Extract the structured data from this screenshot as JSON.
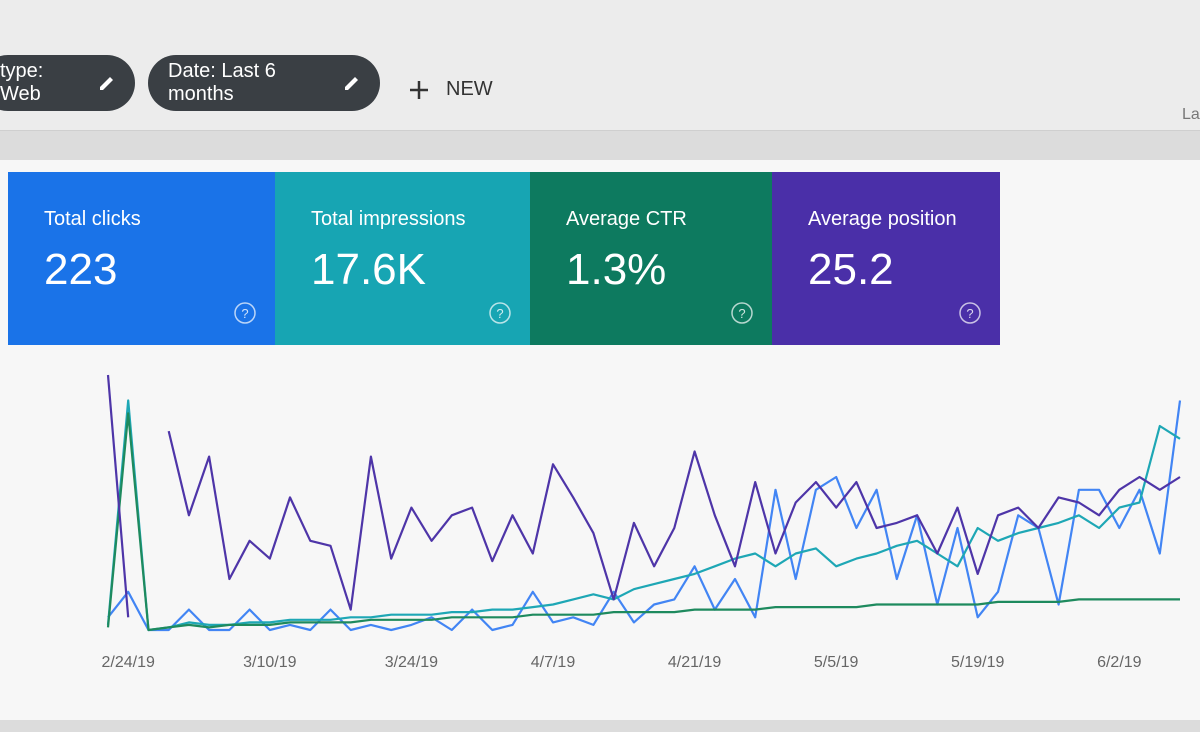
{
  "filters": [
    "type: Web",
    "Date: Last 6 months"
  ],
  "new_button": "NEW",
  "corner_text": "La",
  "metrics": [
    {
      "label": "Total clicks",
      "value": "223",
      "color": "#1a73e8"
    },
    {
      "label": "Total impressions",
      "value": "17.6K",
      "color": "#17a5b3"
    },
    {
      "label": "Average CTR",
      "value": "1.3%",
      "color": "#0d7a5f"
    },
    {
      "label": "Average position",
      "value": "25.2",
      "color": "#4a2fa8"
    }
  ],
  "chart_data": {
    "type": "line",
    "categories": [
      null,
      "2/24/19",
      null,
      null,
      null,
      null,
      null,
      null,
      "3/10/19",
      null,
      null,
      null,
      null,
      null,
      null,
      "3/24/19",
      null,
      null,
      null,
      null,
      null,
      null,
      "4/7/19",
      null,
      null,
      null,
      null,
      null,
      null,
      "4/21/19",
      null,
      null,
      null,
      null,
      null,
      null,
      "5/5/19",
      null,
      null,
      null,
      null,
      null,
      null,
      "5/19/19",
      null,
      null,
      null,
      null,
      null,
      null,
      "6/2/19",
      null,
      null,
      null
    ],
    "ylim": [
      0,
      100
    ],
    "series": [
      {
        "color": "#4285f4",
        "values": [
          5,
          15,
          0,
          0,
          8,
          0,
          0,
          8,
          0,
          2,
          0,
          8,
          0,
          2,
          0,
          2,
          5,
          0,
          8,
          0,
          2,
          15,
          3,
          5,
          2,
          15,
          3,
          10,
          12,
          25,
          8,
          20,
          5,
          55,
          20,
          55,
          60,
          40,
          55,
          20,
          45,
          10,
          40,
          5,
          15,
          45,
          40,
          10,
          55,
          55,
          40,
          55,
          30,
          90
        ]
      },
      {
        "color": "#1ea7b5",
        "values": [
          2,
          90,
          0,
          1,
          3,
          2,
          2,
          3,
          3,
          4,
          4,
          4,
          5,
          5,
          6,
          6,
          6,
          7,
          7,
          8,
          8,
          9,
          10,
          12,
          14,
          12,
          16,
          18,
          20,
          22,
          25,
          28,
          30,
          25,
          30,
          32,
          25,
          28,
          30,
          33,
          35,
          30,
          25,
          40,
          35,
          38,
          40,
          42,
          45,
          40,
          48,
          50,
          80,
          75
        ]
      },
      {
        "color": "#1e8a5e",
        "values": [
          1,
          85,
          0,
          1,
          2,
          1,
          2,
          2,
          2,
          3,
          3,
          3,
          3,
          4,
          4,
          4,
          4,
          5,
          5,
          5,
          5,
          6,
          6,
          6,
          6,
          7,
          7,
          7,
          7,
          8,
          8,
          8,
          8,
          9,
          9,
          9,
          9,
          9,
          10,
          10,
          10,
          10,
          10,
          10,
          11,
          11,
          11,
          11,
          12,
          12,
          12,
          12,
          12,
          12
        ]
      },
      {
        "color": "#4e35a8",
        "values": [
          100,
          5,
          null,
          78,
          45,
          68,
          20,
          35,
          28,
          52,
          35,
          33,
          8,
          68,
          28,
          48,
          35,
          45,
          48,
          27,
          45,
          30,
          65,
          52,
          38,
          12,
          42,
          25,
          40,
          70,
          45,
          25,
          58,
          30,
          50,
          58,
          48,
          58,
          40,
          42,
          45,
          30,
          48,
          22,
          45,
          48,
          40,
          52,
          50,
          45,
          55,
          60,
          55,
          60
        ]
      }
    ]
  }
}
